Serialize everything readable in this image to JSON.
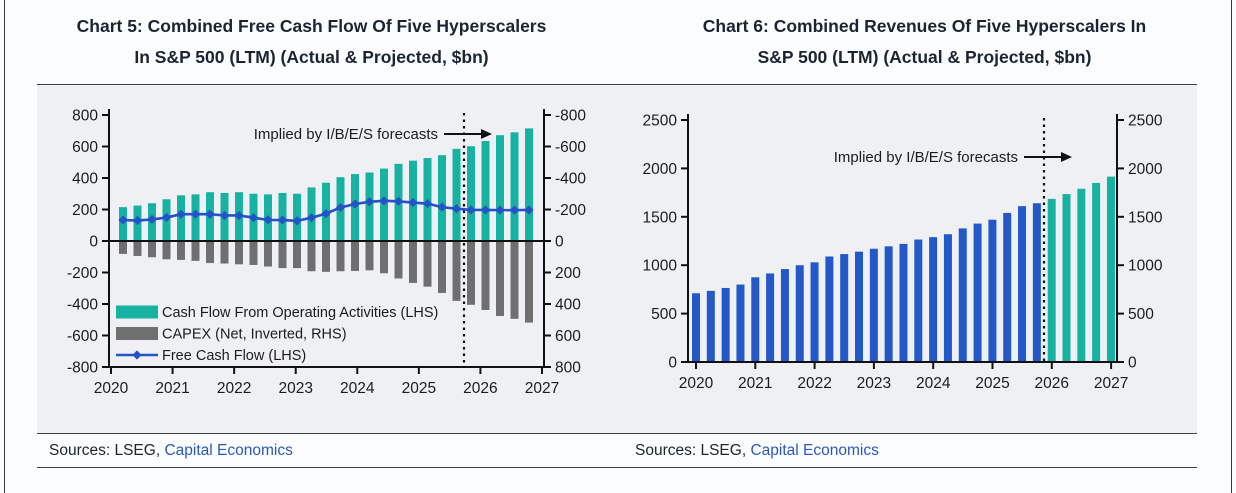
{
  "figure": {
    "sources": {
      "prefix": "Sources: LSEG,",
      "link": "Capital Economics"
    }
  },
  "colors": {
    "teal": "#18b2a3",
    "capex_gray": "#6f6f6f",
    "fcf_line_blue": "#2353c4",
    "revenue_bar_blue": "#2458c8",
    "axis_black": "#111111",
    "title_navy": "#1b2433",
    "link_blue": "#2b59b8",
    "panel_bg": "#eff0f3"
  },
  "chart_data": [
    {
      "id": "chart5",
      "type": "bar",
      "subtype": "dual-axis bars with line overlay",
      "title_lines": [
        "Chart 5: Combined Free Cash Flow Of Five Hyperscalers",
        "In S&P 500 (LTM) (Actual & Projected, $bn)"
      ],
      "x_year_labels": [
        "2020",
        "2021",
        "2022",
        "2023",
        "2024",
        "2025",
        "2026",
        "2027"
      ],
      "left_axis_ticks": [
        800,
        600,
        400,
        200,
        0,
        -200,
        -400,
        -600,
        -800
      ],
      "right_axis_ticks": [
        -800,
        -600,
        -400,
        -200,
        0,
        200,
        400,
        600,
        800
      ],
      "left_axis_range": [
        -800,
        800
      ],
      "right_axis_inverted": true,
      "grid": false,
      "annotation_text": "Implied by I/B/E/S forecasts",
      "forecast_start_index": 24,
      "legend_position": "inside-bottom-left",
      "quarters": [
        "2020 Q1",
        "2020 Q2",
        "2020 Q3",
        "2020 Q4",
        "2021 Q1",
        "2021 Q2",
        "2021 Q3",
        "2021 Q4",
        "2022 Q1",
        "2022 Q2",
        "2022 Q3",
        "2022 Q4",
        "2023 Q1",
        "2023 Q2",
        "2023 Q3",
        "2023 Q4",
        "2024 Q1",
        "2024 Q2",
        "2024 Q3",
        "2024 Q4",
        "2025 Q1",
        "2025 Q2",
        "2025 Q3",
        "2025 Q4",
        "2026 Q1",
        "2026 Q2",
        "2026 Q3",
        "2026 Q4",
        "2027 Q1"
      ],
      "series": [
        {
          "name": "Cash Flow From Operating Activities (LHS)",
          "type": "bar",
          "direction": "up",
          "axis": "left",
          "color": "#18b2a3",
          "values": [
            215,
            225,
            240,
            265,
            290,
            296,
            310,
            305,
            310,
            300,
            296,
            305,
            300,
            340,
            370,
            405,
            425,
            435,
            460,
            490,
            510,
            527,
            545,
            585,
            602,
            635,
            672,
            690,
            715
          ]
        },
        {
          "name": "CAPEX (Net, Inverted, RHS)",
          "type": "bar",
          "direction": "down",
          "axis": "right-inverted",
          "color": "#6f6f6f",
          "values": [
            82,
            95,
            103,
            116,
            120,
            126,
            140,
            143,
            148,
            152,
            162,
            172,
            172,
            192,
            196,
            192,
            190,
            186,
            205,
            238,
            266,
            290,
            330,
            380,
            405,
            438,
            476,
            494,
            518
          ]
        },
        {
          "name": "Free Cash Flow (LHS)",
          "type": "line",
          "axis": "left",
          "color": "#2353c4",
          "marker": "diamond",
          "values": [
            133,
            130,
            137,
            149,
            170,
            170,
            170,
            162,
            162,
            148,
            134,
            133,
            128,
            148,
            174,
            213,
            235,
            249,
            255,
            252,
            244,
            237,
            215,
            205,
            197,
            197,
            196,
            196,
            197
          ]
        }
      ]
    },
    {
      "id": "chart6",
      "type": "bar",
      "title_lines": [
        "Chart 6: Combined Revenues Of Five Hyperscalers In",
        "S&P 500 (LTM) (Actual & Projected, $bn)"
      ],
      "x_year_labels": [
        "2020",
        "2021",
        "2022",
        "2023",
        "2024",
        "2025",
        "2026",
        "2027"
      ],
      "left_axis_ticks": [
        2500,
        2000,
        1500,
        1000,
        500,
        0
      ],
      "right_axis_ticks": [
        2500,
        2000,
        1500,
        1000,
        500,
        0
      ],
      "left_axis_range": [
        0,
        2500
      ],
      "grid": false,
      "annotation_text": "Implied by I/B/E/S forecasts",
      "forecast_start_index": 24,
      "quarters": [
        "2020 Q1",
        "2020 Q2",
        "2020 Q3",
        "2020 Q4",
        "2021 Q1",
        "2021 Q2",
        "2021 Q3",
        "2021 Q4",
        "2022 Q1",
        "2022 Q2",
        "2022 Q3",
        "2022 Q4",
        "2023 Q1",
        "2023 Q2",
        "2023 Q3",
        "2023 Q4",
        "2024 Q1",
        "2024 Q2",
        "2024 Q3",
        "2024 Q4",
        "2025 Q1",
        "2025 Q2",
        "2025 Q3",
        "2025 Q4",
        "2026 Q1",
        "2026 Q2",
        "2026 Q3",
        "2026 Q4",
        "2027 Q1"
      ],
      "series": [
        {
          "name": "Revenues",
          "type": "bar",
          "direction": "up",
          "axis": "left",
          "color": "#2458c8",
          "forecast_color": "#18b2a3",
          "values": [
            710,
            735,
            765,
            800,
            875,
            915,
            960,
            1000,
            1030,
            1090,
            1115,
            1140,
            1170,
            1195,
            1220,
            1265,
            1290,
            1320,
            1380,
            1430,
            1470,
            1540,
            1610,
            1640,
            1685,
            1735,
            1790,
            1850,
            1915
          ]
        }
      ]
    }
  ]
}
